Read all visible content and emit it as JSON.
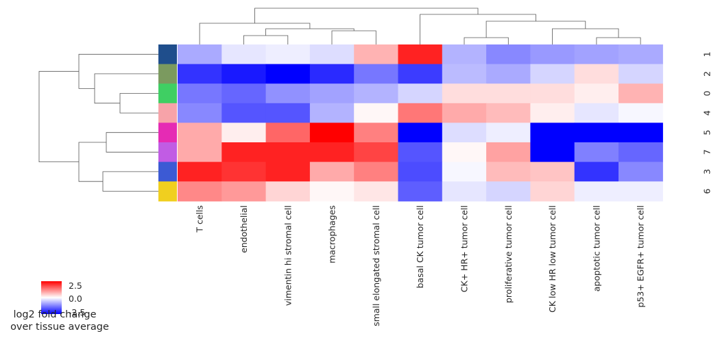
{
  "chart_data": {
    "type": "heatmap",
    "rows": [
      "1",
      "2",
      "0",
      "4",
      "5",
      "7",
      "3",
      "6"
    ],
    "columns": [
      "T cells",
      "endothelial",
      "vimentin hi stromal cell",
      "macrophages",
      "small elongated stromal cell",
      "basal CK tumor cell",
      "CK+ HR+ tumor cell",
      "proliferative tumor cell",
      "CK low HR low tumor cell",
      "apoptotic tumor cell",
      "p53+ EGFR+ tumor cell"
    ],
    "values": [
      [
        -1.0,
        -0.3,
        -0.2,
        -0.4,
        0.9,
        2.6,
        -0.9,
        -1.4,
        -1.2,
        -1.1,
        -1.0
      ],
      [
        -2.4,
        -2.7,
        -3.0,
        -2.5,
        -1.6,
        -2.3,
        -0.8,
        -1.0,
        -0.5,
        0.4,
        -0.5
      ],
      [
        -1.6,
        -1.8,
        -1.3,
        -1.1,
        -0.9,
        -0.5,
        0.4,
        0.4,
        0.4,
        0.2,
        0.9
      ],
      [
        -1.4,
        -2.0,
        -2.0,
        -0.9,
        0.1,
        1.6,
        1.0,
        0.8,
        0.2,
        -0.3,
        -0.1
      ],
      [
        1.0,
        0.2,
        1.8,
        3.0,
        1.5,
        -3.0,
        -0.4,
        -0.2,
        -3.0,
        -3.0,
        -3.0
      ],
      [
        1.0,
        2.6,
        2.6,
        2.6,
        2.2,
        -2.0,
        0.1,
        1.1,
        -3.0,
        -1.5,
        -1.8
      ],
      [
        2.6,
        2.4,
        2.6,
        1.0,
        1.5,
        -2.1,
        -0.1,
        0.8,
        0.7,
        -2.4,
        -1.4
      ],
      [
        1.4,
        1.2,
        0.5,
        0.1,
        0.3,
        -1.9,
        -0.3,
        -0.5,
        0.5,
        -0.2,
        -0.2
      ]
    ],
    "row_colors": [
      "#1f4e8c",
      "#7b9a5f",
      "#3fcf63",
      "#f7a3a9",
      "#e52bb4",
      "#c15ce4",
      "#3c5ad4",
      "#f0cf1f"
    ],
    "colorbar": {
      "ticks": [
        "2.5",
        "0.0",
        "-2.5"
      ],
      "label_lines": [
        "log2 fold change",
        "over tissue average"
      ],
      "colors": [
        "#ff0000",
        "#ffffff",
        "#0000ff"
      ],
      "vmin": -3.0,
      "vmax": 3.0
    },
    "dendrograms": true
  }
}
